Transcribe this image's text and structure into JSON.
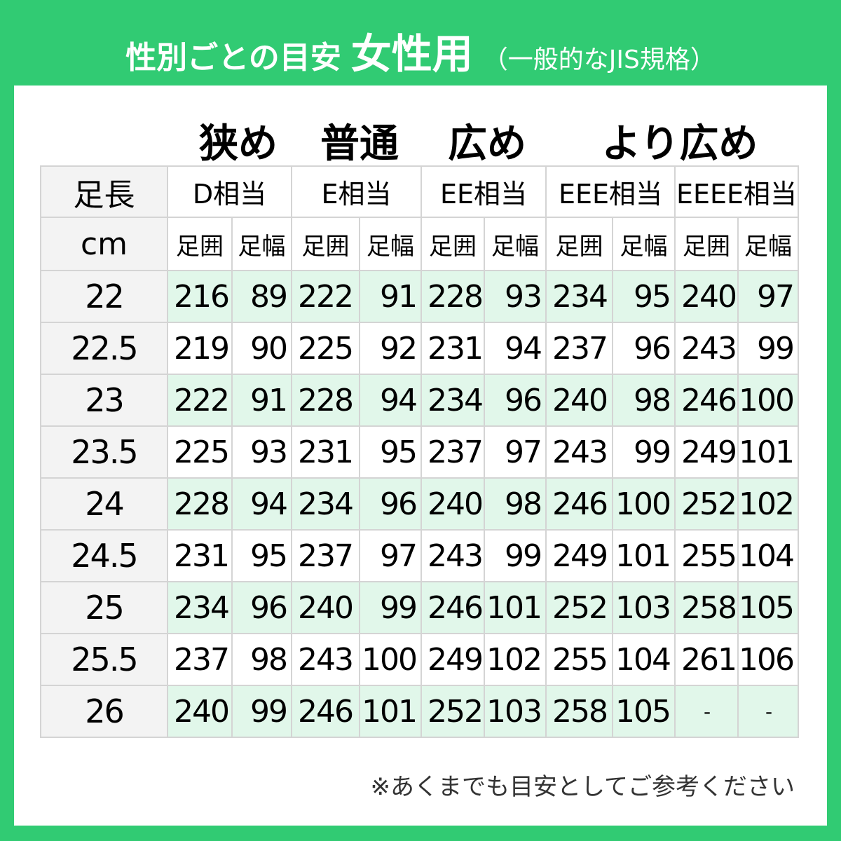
{
  "title": {
    "part1": "性別ごとの目安",
    "part2": "女性用",
    "part3": "（一般的なJIS規格）"
  },
  "width_labels": [
    "狭め",
    "普通",
    "広め",
    "より広め"
  ],
  "table": {
    "corner_top": "足長",
    "corner_bottom": "cm",
    "width_classes": [
      "D相当",
      "E相当",
      "EE相当",
      "EEE相当",
      "EEEE相当"
    ],
    "sub_headers": [
      "足囲",
      "足幅"
    ],
    "rows": [
      {
        "length": "22",
        "values": [
          "216",
          "89",
          "222",
          "91",
          "228",
          "93",
          "234",
          "95",
          "240",
          "97"
        ]
      },
      {
        "length": "22.5",
        "values": [
          "219",
          "90",
          "225",
          "92",
          "231",
          "94",
          "237",
          "96",
          "243",
          "99"
        ]
      },
      {
        "length": "23",
        "values": [
          "222",
          "91",
          "228",
          "94",
          "234",
          "96",
          "240",
          "98",
          "246",
          "100"
        ]
      },
      {
        "length": "23.5",
        "values": [
          "225",
          "93",
          "231",
          "95",
          "237",
          "97",
          "243",
          "99",
          "249",
          "101"
        ]
      },
      {
        "length": "24",
        "values": [
          "228",
          "94",
          "234",
          "96",
          "240",
          "98",
          "246",
          "100",
          "252",
          "102"
        ]
      },
      {
        "length": "24.5",
        "values": [
          "231",
          "95",
          "237",
          "97",
          "243",
          "99",
          "249",
          "101",
          "255",
          "104"
        ]
      },
      {
        "length": "25",
        "values": [
          "234",
          "96",
          "240",
          "99",
          "246",
          "101",
          "252",
          "103",
          "258",
          "105"
        ]
      },
      {
        "length": "25.5",
        "values": [
          "237",
          "98",
          "243",
          "100",
          "249",
          "102",
          "255",
          "104",
          "261",
          "106"
        ]
      },
      {
        "length": "26",
        "values": [
          "240",
          "99",
          "246",
          "101",
          "252",
          "103",
          "258",
          "105",
          "-",
          "-"
        ]
      }
    ]
  },
  "note": "※あくまでも目安としてご参考ください",
  "colors": {
    "background": "#31cb73",
    "row_highlight": "#e1f7ea",
    "header_cell": "#f3f3f3"
  }
}
